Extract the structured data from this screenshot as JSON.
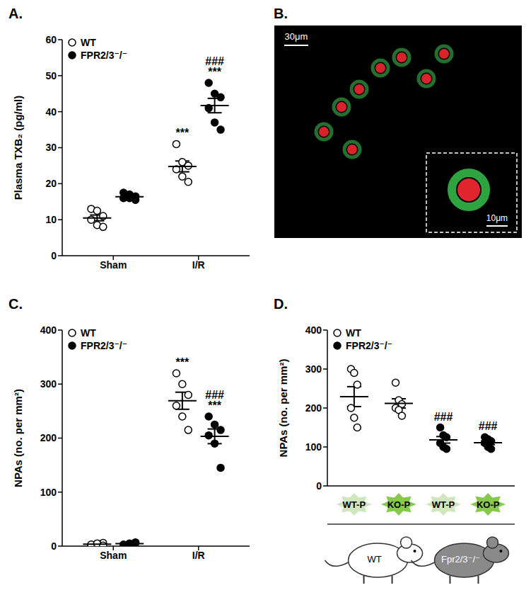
{
  "chart_data": [
    {
      "type": "dot",
      "title": "A.",
      "y_label": "Plasma TXB₂ (pg/ml)",
      "categories": [
        "Sham",
        "I/R"
      ],
      "ylim": [
        0,
        60
      ],
      "yticks": [
        0,
        10,
        20,
        30,
        40,
        50,
        60
      ],
      "legend": "upper left",
      "series": [
        {
          "name": "WT",
          "color": "#000000",
          "marker": "open",
          "values": [
            [
              13,
              12.5,
              11,
              10,
              8.5,
              8
            ],
            [
              31,
              26,
              25,
              24,
              22,
              20.5
            ]
          ],
          "mean": [
            10.5,
            24.8
          ],
          "error": [
            0.8,
            1.5
          ],
          "annotations": [
            null,
            [
              "***"
            ]
          ]
        },
        {
          "name": "FPR2/3⁻/⁻",
          "color": "#000000",
          "marker": "filled",
          "values": [
            [
              17.5,
              17,
              16.5,
              16,
              16,
              15.5
            ],
            [
              48,
              45,
              44,
              41,
              37,
              35
            ]
          ],
          "mean": [
            16.4,
            41.7
          ],
          "error": [
            0.3,
            2.0
          ],
          "annotations": [
            null,
            [
              "###",
              "***"
            ]
          ]
        }
      ]
    },
    {
      "type": "image",
      "title": "B.",
      "annotations": [
        "30μm",
        "10μm"
      ]
    },
    {
      "type": "dot",
      "title": "C.",
      "y_label": "NPAs (no. per mm²)",
      "categories": [
        "Sham",
        "I/R"
      ],
      "ylim": [
        0,
        400
      ],
      "yticks": [
        0,
        100,
        200,
        300,
        400
      ],
      "legend": "upper left",
      "series": [
        {
          "name": "WT",
          "color": "#000000",
          "marker": "open",
          "values": [
            [
              2,
              4,
              6,
              3,
              5,
              1
            ],
            [
              320,
              300,
              280,
              260,
              240,
              215
            ]
          ],
          "mean": [
            3.5,
            269.2
          ],
          "error": [
            0.8,
            15.8
          ],
          "annotations": [
            null,
            [
              "***"
            ]
          ]
        },
        {
          "name": "FPR2/3⁻/⁻",
          "color": "#000000",
          "marker": "filled",
          "values": [
            [
              3,
              5,
              7,
              2,
              4,
              6
            ],
            [
              240,
              225,
              215,
              205,
              190,
              145
            ]
          ],
          "mean": [
            4.5,
            203.3
          ],
          "error": [
            0.8,
            13.6
          ],
          "annotations": [
            null,
            [
              "###",
              "***"
            ]
          ]
        }
      ]
    },
    {
      "type": "dot",
      "title": "D.",
      "y_label": "NPAs (no. per mm²)",
      "categories": [
        "WT-P",
        "KO-P",
        "WT-P",
        "KO-P"
      ],
      "groups": [
        "WT",
        "Fpr2/3⁻/⁻"
      ],
      "ylim": [
        0,
        400
      ],
      "yticks": [
        0,
        100,
        200,
        300,
        400
      ],
      "legend": "upper left",
      "series": [
        {
          "name": "WT",
          "color": "#000000",
          "marker": "open",
          "values": [
            [
              300,
              290,
              260,
              200,
              175,
              150
            ],
            [
              265,
              220,
              210,
              200,
              195,
              180
            ],
            null,
            null
          ],
          "mean": [
            229.2,
            211.7,
            null,
            null
          ],
          "error": [
            25.6,
            12.0,
            null,
            null
          ],
          "annotations": [
            null,
            null,
            null,
            null
          ]
        },
        {
          "name": "FPR2/3⁻/⁻",
          "color": "#000000",
          "marker": "filled",
          "values": [
            null,
            null,
            [
              150,
              130,
              125,
              110,
              100,
              95
            ],
            [
              125,
              120,
              115,
              110,
              100,
              95
            ]
          ],
          "mean": [
            null,
            null,
            118.3,
            110.8
          ],
          "error": [
            null,
            null,
            8.4,
            4.7
          ],
          "annotations": [
            null,
            null,
            [
              "###"
            ],
            [
              "###"
            ]
          ]
        }
      ]
    }
  ]
}
